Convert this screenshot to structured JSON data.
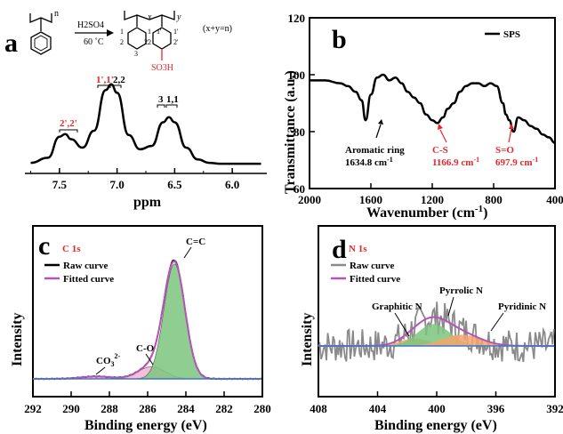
{
  "colors": {
    "red": "#e8262a",
    "magenta": "#b455b4",
    "green": "#7cc47c",
    "pink": "#f2a4c8",
    "orange": "#f5a46e",
    "blue": "#3a78c8",
    "gray": "#8a8a8a"
  },
  "panel_a": {
    "letter": "a",
    "reactant_n": "n",
    "reagent": "H2SO4",
    "temperature": "60 ˚C",
    "product_x": "x",
    "product_y": "y",
    "ring_numbers_left": [
      "1",
      "2",
      "3",
      "1",
      "2"
    ],
    "ring_numbers_right": [
      "1'",
      "2'",
      "1'",
      "2'"
    ],
    "so3h": "SO3H",
    "condition": "(x+y=n)",
    "peak_labels": [
      "2',2'",
      "1',1'",
      "2,2",
      "3",
      "1,1"
    ]
  },
  "chart_data": [
    {
      "panel": "a",
      "type": "line",
      "xlabel": "ppm",
      "ylabel": "",
      "xlim": [
        7.8,
        5.7
      ],
      "xticks": [
        "7.5",
        "7.0",
        "6.5",
        "6.0"
      ],
      "x": [
        7.75,
        7.6,
        7.5,
        7.45,
        7.4,
        7.3,
        7.2,
        7.1,
        7.05,
        7.0,
        6.9,
        6.8,
        6.7,
        6.6,
        6.55,
        6.5,
        6.4,
        6.3,
        6.2,
        6.1,
        6.0,
        5.9,
        5.75
      ],
      "values": [
        0.02,
        0.08,
        0.33,
        0.36,
        0.3,
        0.2,
        0.4,
        0.88,
        0.95,
        0.85,
        0.35,
        0.18,
        0.22,
        0.5,
        0.56,
        0.5,
        0.2,
        0.06,
        0.02,
        0.01,
        0.01,
        0.01,
        0.01
      ]
    },
    {
      "panel": "b",
      "type": "line",
      "title": "",
      "legend": "SPS",
      "xlabel": "Wavenumber (cm-1)",
      "ylabel": "Transmittance (a.u.)",
      "xlim": [
        2000,
        400
      ],
      "ylim": [
        60,
        120
      ],
      "xticks": [
        "2000",
        "1600",
        "1200",
        "800",
        "400"
      ],
      "yticks": [
        "60",
        "80",
        "100",
        "120"
      ],
      "x": [
        2000,
        1900,
        1800,
        1750,
        1700,
        1660,
        1634.8,
        1600,
        1560,
        1520,
        1480,
        1440,
        1400,
        1360,
        1320,
        1280,
        1240,
        1200,
        1166.9,
        1130,
        1100,
        1060,
        1020,
        980,
        940,
        900,
        860,
        820,
        780,
        740,
        720,
        697.9,
        670,
        640,
        600,
        560,
        520,
        480,
        440,
        400
      ],
      "values": [
        98,
        98,
        97,
        96,
        94,
        91,
        84,
        93,
        99,
        100,
        98,
        99,
        97,
        94,
        92,
        90,
        86,
        84,
        83,
        85,
        88,
        90,
        94,
        96,
        97,
        97,
        96,
        97,
        96,
        90,
        86,
        84,
        80,
        85,
        84,
        82,
        81,
        79,
        78,
        76
      ],
      "annotations": [
        {
          "text": "Aromatic ring",
          "sub": "1634.8 cm⁻¹"
        },
        {
          "text": "C-S",
          "sub": "1166.9 cm⁻¹"
        },
        {
          "text": "S=O",
          "sub": "697.9 cm⁻¹"
        }
      ]
    },
    {
      "panel": "c",
      "type": "area",
      "title": "C 1s",
      "xlabel": "Binding energy (eV)",
      "ylabel": "Intensity",
      "xlim": [
        292,
        280
      ],
      "xticks": [
        "292",
        "290",
        "288",
        "286",
        "284",
        "282",
        "280"
      ],
      "legend": [
        "Raw curve",
        "Fitted curve"
      ],
      "peaks": [
        {
          "label": "C=C",
          "center": 284.6,
          "height": 0.95,
          "width": 0.55,
          "color": "green"
        },
        {
          "label": "C-O",
          "center": 285.8,
          "height": 0.1,
          "width": 0.7,
          "color": "pink"
        },
        {
          "label": "CO3 2-",
          "center": 288.7,
          "height": 0.02,
          "width": 0.8,
          "color": "pink"
        }
      ]
    },
    {
      "panel": "d",
      "type": "area",
      "title": "N 1s",
      "xlabel": "Binding energy (eV)",
      "ylabel": "Intensity",
      "xlim": [
        408,
        392
      ],
      "xticks": [
        "408",
        "404",
        "400",
        "396",
        "392"
      ],
      "legend": [
        "Raw curve",
        "Fitted curve"
      ],
      "peaks": [
        {
          "label": "Graphitic N",
          "center": 401.5,
          "height": 0.12,
          "width": 1.0,
          "color": "orange"
        },
        {
          "label": "Pyrrolic N",
          "center": 400.2,
          "height": 0.35,
          "width": 1.1,
          "color": "green"
        },
        {
          "label": "Pyridinic N",
          "center": 398.3,
          "height": 0.18,
          "width": 1.3,
          "color": "orange"
        }
      ]
    }
  ],
  "panel_letters": {
    "b": "b",
    "c": "c",
    "d": "d"
  },
  "labels": {
    "ppm": "ppm",
    "transmittance": "Transmittance (a.u.)",
    "wavenumber": "Wavenumber (cm",
    "wavenumber_sup": "-1",
    "wavenumber_end": ")",
    "sps": "SPS",
    "aromatic": "Aromatic ring",
    "aromatic_val": "1634.8 cm",
    "cs": "C-S",
    "cs_val": "1166.9 cm",
    "so": "S=O",
    "so_val": "697.9 cm",
    "sup_m1": "-1",
    "c1s": "C 1s",
    "n1s": "N 1s",
    "raw": "Raw curve",
    "fitted": "Fitted curve",
    "intensity": "Intensity",
    "binding": "Binding energy (eV)",
    "cc": "C=C",
    "co": "C-O",
    "co3": "CO",
    "co3_sub": "3",
    "co3_sup": "2-",
    "graphitic": "Graphitic N",
    "pyrrolic": "Pyrrolic N",
    "pyridinic": "Pyridinic N"
  }
}
